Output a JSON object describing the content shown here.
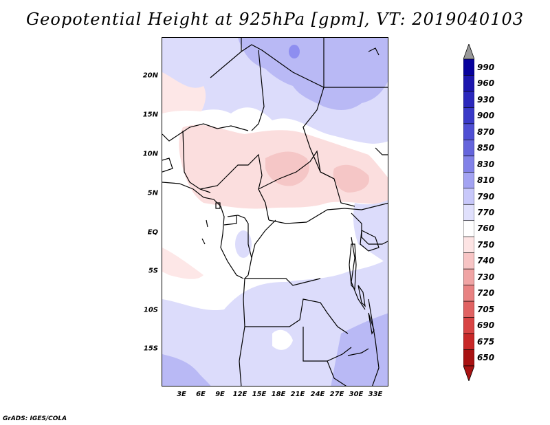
{
  "title": "Geopotential Height at 925hPa [gpm], VT: 2019040103",
  "footer": "GrADS: IGES/COLA",
  "axes": {
    "lat_ticks": [
      "20N",
      "15N",
      "10N",
      "5N",
      "EQ",
      "5S",
      "10S",
      "15S"
    ],
    "lon_ticks": [
      "3E",
      "6E",
      "9E",
      "12E",
      "15E",
      "18E",
      "21E",
      "24E",
      "27E",
      "30E",
      "33E"
    ]
  },
  "colorbar": {
    "levels": [
      "990",
      "960",
      "930",
      "900",
      "870",
      "850",
      "830",
      "810",
      "790",
      "770",
      "760",
      "750",
      "740",
      "730",
      "720",
      "705",
      "690",
      "675",
      "650"
    ],
    "colors": [
      "#07019c",
      "#1c16ae",
      "#2b28bc",
      "#3a3ac8",
      "#4f4fd4",
      "#6565dc",
      "#8282e8",
      "#a3a3f2",
      "#c8c8fa",
      "#e0e0fc",
      "#ffffff",
      "#fde4e4",
      "#f7c4c4",
      "#f0a4a4",
      "#e88282",
      "#e06262",
      "#d84444",
      "#c82828",
      "#a81212"
    ]
  }
}
